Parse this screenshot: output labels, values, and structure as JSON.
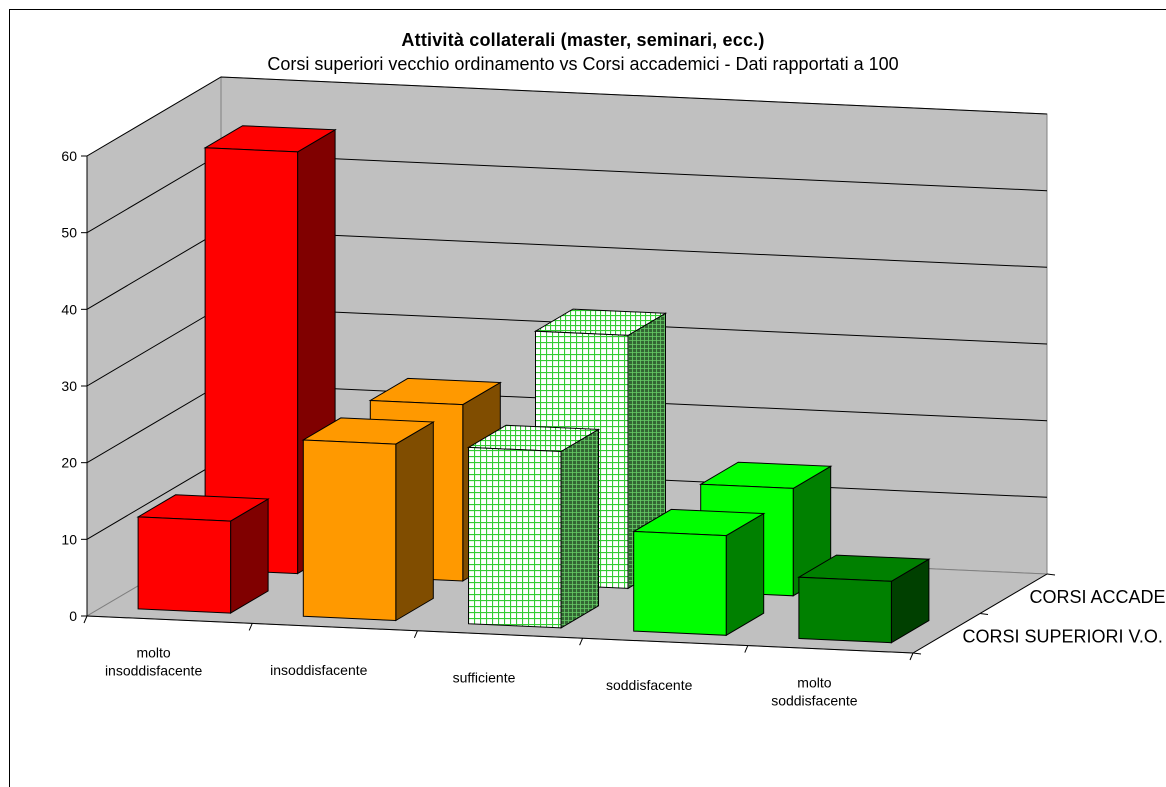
{
  "chart_data": {
    "type": "bar",
    "title": "Attività collaterali (master, seminari, ecc.)",
    "subtitle": "Corsi superiori vecchio ordinamento vs Corsi accademici - Dati rapportati a 100",
    "categories": [
      "molto insoddisfacente",
      "insoddisfacente",
      "sufficiente",
      "soddisfacente",
      "molto soddisfacente"
    ],
    "category_lines": [
      [
        "molto",
        "insoddisfacente"
      ],
      [
        "insoddisfacente"
      ],
      [
        "sufficiente"
      ],
      [
        "soddisfacente"
      ],
      [
        "molto",
        "soddisfacente"
      ]
    ],
    "series": [
      {
        "name": "CORSI SUPERIORI V.O.",
        "values": [
          12,
          23,
          23,
          13,
          8
        ]
      },
      {
        "name": "CORSI ACCADEMICI",
        "values": [
          55,
          23,
          33,
          14,
          0
        ]
      }
    ],
    "series_legend_order": [
      "CORSI ACCADEMICI",
      "CORSI SUPERIORI V.O."
    ],
    "ylim": [
      0,
      60
    ],
    "yticks": [
      0,
      10,
      20,
      30,
      40,
      50,
      60
    ],
    "grid": true,
    "bar_colors": [
      "#ff0000",
      "#ff9900",
      "#ccffcc",
      "#00ff00",
      "#008000"
    ]
  }
}
